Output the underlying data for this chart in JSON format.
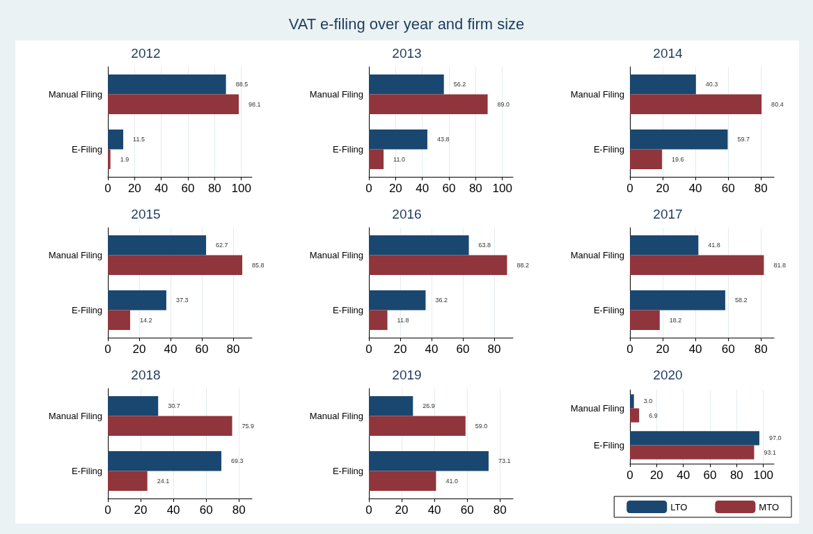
{
  "chart_data": [
    {
      "type": "bar",
      "orientation": "horizontal",
      "title": "2012",
      "annotations": [
        "VAT e-filing over year and firm size"
      ],
      "categories": [
        "Manual Filing",
        "E-Filing"
      ],
      "xlim": [
        0,
        108
      ],
      "xticks": [
        0,
        20,
        40,
        60,
        80,
        100
      ],
      "grid": "x",
      "legend": false,
      "series": [
        {
          "color": "#1a476f",
          "values": [
            88.5,
            11.5
          ],
          "value_labels": [
            "88.5",
            "11.5"
          ]
        },
        {
          "color": "#90353b",
          "values": [
            98.1,
            1.9
          ],
          "value_labels": [
            "98.1",
            "1.9"
          ]
        }
      ]
    },
    {
      "type": "bar",
      "orientation": "horizontal",
      "title": "2013",
      "categories": [
        "Manual Filing",
        "E-Filing"
      ],
      "xlim": [
        0,
        108
      ],
      "xticks": [
        0,
        20,
        40,
        60,
        80,
        100
      ],
      "grid": "x",
      "legend": false,
      "series": [
        {
          "color": "#1a476f",
          "values": [
            56.2,
            43.8
          ],
          "value_labels": [
            "56.2",
            "43.8"
          ]
        },
        {
          "color": "#90353b",
          "values": [
            89.0,
            11.0
          ],
          "value_labels": [
            "89.0",
            "11.0"
          ]
        }
      ]
    },
    {
      "type": "bar",
      "orientation": "horizontal",
      "title": "2014",
      "categories": [
        "Manual Filing",
        "E-Filing"
      ],
      "xlim": [
        0,
        88
      ],
      "xticks": [
        0,
        20,
        40,
        60,
        80
      ],
      "grid": "x",
      "legend": false,
      "series": [
        {
          "color": "#1a476f",
          "values": [
            40.3,
            59.7
          ],
          "value_labels": [
            "40.3",
            "59.7"
          ]
        },
        {
          "color": "#90353b",
          "values": [
            80.4,
            19.6
          ],
          "value_labels": [
            "80.4",
            "19.6"
          ]
        }
      ]
    },
    {
      "type": "bar",
      "orientation": "horizontal",
      "title": "2015",
      "categories": [
        "Manual Filing",
        "E-Filing"
      ],
      "xlim": [
        0,
        92
      ],
      "xticks": [
        0,
        20,
        40,
        60,
        80
      ],
      "grid": "x",
      "legend": false,
      "series": [
        {
          "color": "#1a476f",
          "values": [
            62.7,
            37.3
          ],
          "value_labels": [
            "62.7",
            "37.3"
          ]
        },
        {
          "color": "#90353b",
          "values": [
            85.8,
            14.2
          ],
          "value_labels": [
            "85.8",
            "14.2"
          ]
        }
      ]
    },
    {
      "type": "bar",
      "orientation": "horizontal",
      "title": "2016",
      "categories": [
        "Manual Filing",
        "E-Filing"
      ],
      "xlim": [
        0,
        92
      ],
      "xticks": [
        0,
        20,
        40,
        60,
        80
      ],
      "grid": "x",
      "legend": false,
      "series": [
        {
          "color": "#1a476f",
          "values": [
            63.8,
            36.2
          ],
          "value_labels": [
            "63.8",
            "36.2"
          ]
        },
        {
          "color": "#90353b",
          "values": [
            88.2,
            11.8
          ],
          "value_labels": [
            "88.2",
            "11.8"
          ]
        }
      ]
    },
    {
      "type": "bar",
      "orientation": "horizontal",
      "title": "2017",
      "categories": [
        "Manual Filing",
        "E-Filing"
      ],
      "xlim": [
        0,
        88
      ],
      "xticks": [
        0,
        20,
        40,
        60,
        80
      ],
      "grid": "x",
      "legend": false,
      "series": [
        {
          "color": "#1a476f",
          "values": [
            41.8,
            58.2
          ],
          "value_labels": [
            "41.8",
            "58.2"
          ]
        },
        {
          "color": "#90353b",
          "values": [
            81.8,
            18.2
          ],
          "value_labels": [
            "81.8",
            "18.2"
          ]
        }
      ]
    },
    {
      "type": "bar",
      "orientation": "horizontal",
      "title": "2018",
      "categories": [
        "Manual Filing",
        "E-Filing"
      ],
      "xlim": [
        0,
        88
      ],
      "xticks": [
        0,
        20,
        40,
        60,
        80
      ],
      "grid": "x",
      "legend": false,
      "series": [
        {
          "color": "#1a476f",
          "values": [
            30.7,
            69.3
          ],
          "value_labels": [
            "30.7",
            "69.3"
          ]
        },
        {
          "color": "#90353b",
          "values": [
            75.9,
            24.1
          ],
          "value_labels": [
            "75.9",
            "24.1"
          ]
        }
      ]
    },
    {
      "type": "bar",
      "orientation": "horizontal",
      "title": "2019",
      "categories": [
        "Manual Filing",
        "E-Filing"
      ],
      "xlim": [
        0,
        88
      ],
      "xticks": [
        0,
        20,
        40,
        60,
        80
      ],
      "grid": "x",
      "legend": false,
      "series": [
        {
          "color": "#1a476f",
          "values": [
            26.9,
            73.1
          ],
          "value_labels": [
            "26.9",
            "73.1"
          ]
        },
        {
          "color": "#90353b",
          "values": [
            59.0,
            41.0
          ],
          "value_labels": [
            "59.0",
            "41.0"
          ]
        }
      ]
    },
    {
      "type": "bar",
      "orientation": "horizontal",
      "title": "2020",
      "categories": [
        "Manual Filing",
        "E-Filing"
      ],
      "xlim": [
        0,
        108
      ],
      "xticks": [
        0,
        20,
        40,
        60,
        80,
        100
      ],
      "grid": "x",
      "legend": "bottom",
      "series": [
        {
          "name": "LTO",
          "color": "#1a476f",
          "values": [
            3.0,
            97.0
          ],
          "value_labels": [
            "3.0",
            "97.0"
          ]
        },
        {
          "name": "MTO",
          "color": "#90353b",
          "values": [
            6.9,
            93.1
          ],
          "value_labels": [
            "6.9",
            "93.1"
          ]
        }
      ]
    }
  ]
}
